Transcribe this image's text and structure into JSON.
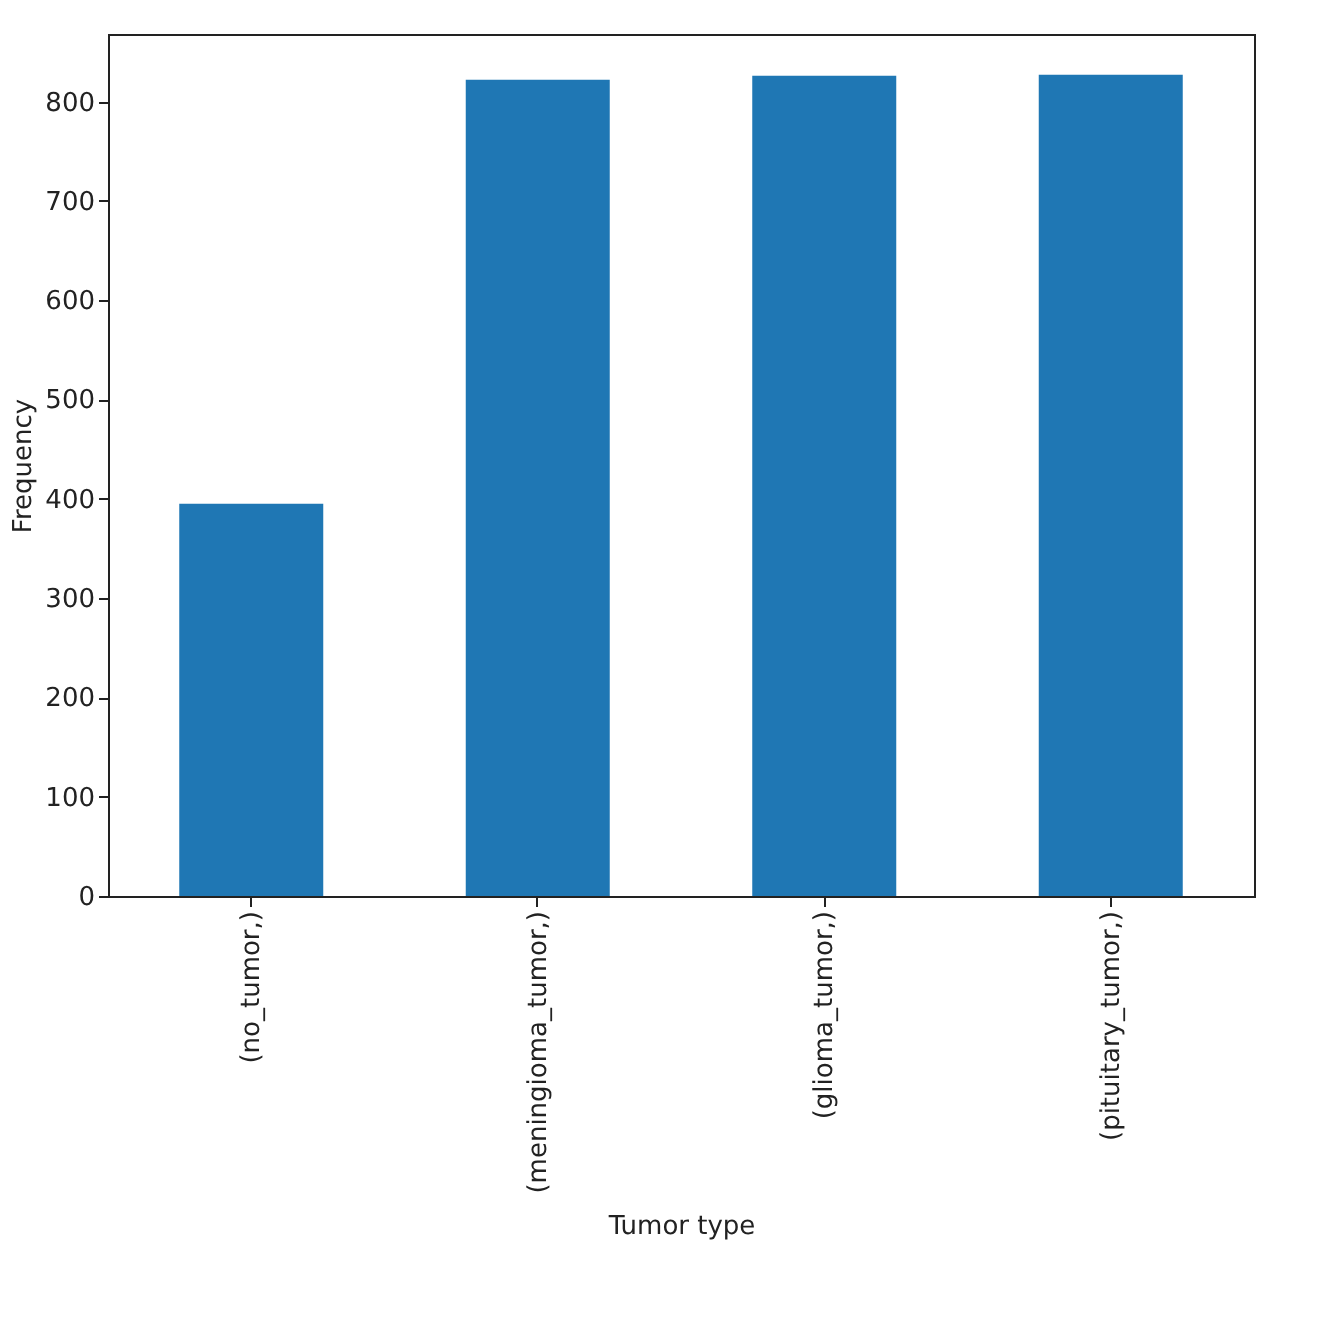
{
  "chart_data": {
    "type": "bar",
    "xlabel": "Tumor type",
    "ylabel": "Frequency",
    "categories": [
      "(no_tumor,)",
      "(meningioma_tumor,)",
      "(glioma_tumor,)",
      "(pituitary_tumor,)"
    ],
    "values": [
      395,
      822,
      826,
      827
    ],
    "color": "#1f77b4",
    "ylim": [
      0,
      868
    ],
    "yticks": [
      0,
      100,
      200,
      300,
      400,
      500,
      600,
      700,
      800
    ],
    "grid": false
  }
}
